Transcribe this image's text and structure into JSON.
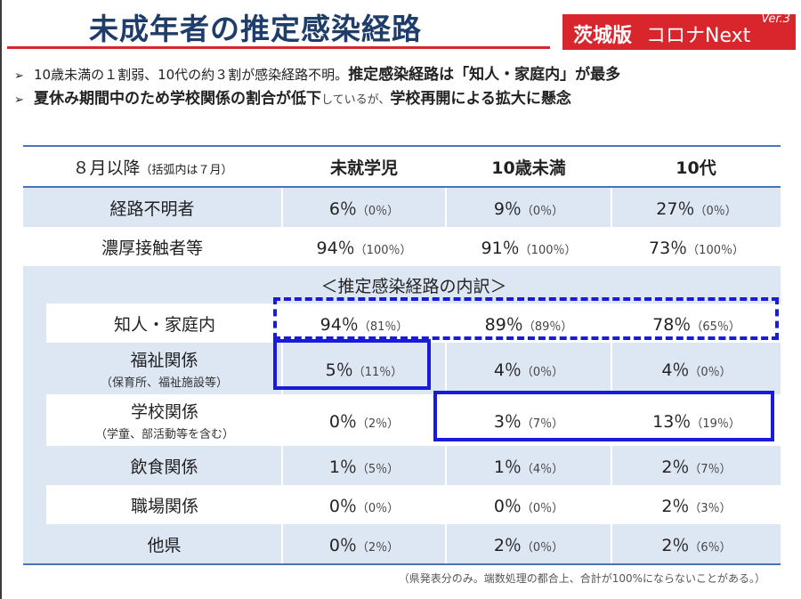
{
  "title": "未成年者の推定感染経路",
  "badge": {
    "prefix": "茨城版",
    "brand": "コロナNext",
    "version": "Ver.3"
  },
  "bullets": {
    "b1_mark": "➢",
    "b1_normal": "10歳未満の１割弱、10代の約３割が感染経路不明。",
    "b1_strong": "推定感染経路は「知人・家庭内」が最多",
    "b2_mark": "➢",
    "b2_strong1": "夏休み期間中のため学校関係の割合が低下",
    "b2_soft": "しているが、",
    "b2_strong2": "学校再開による拡大に懸念"
  },
  "table": {
    "header": {
      "label": "８月以降",
      "label_sub": "（括弧内は７月）",
      "col1": "未就学児",
      "col2": "10歳未満",
      "col3": "10代"
    },
    "section_title": "＜推定感染経路の内訳＞",
    "rows": [
      {
        "label": "経路不明者",
        "sub": "",
        "c1": "6％",
        "c1p": "（0％）",
        "c2": "9％",
        "c2p": "（0％）",
        "c3": "27％",
        "c3p": "（0％）"
      },
      {
        "label": "濃厚接触者等",
        "sub": "",
        "c1": "94％",
        "c1p": "（100％）",
        "c2": "91％",
        "c2p": "（100％）",
        "c3": "73％",
        "c3p": "（100％）"
      },
      {
        "label": "知人・家庭内",
        "sub": "",
        "c1": "94％",
        "c1p": "（81％）",
        "c2": "89％",
        "c2p": "（89％）",
        "c3": "78％",
        "c3p": "（65％）"
      },
      {
        "label": "福祉関係",
        "sub": "（保育所、福祉施設等）",
        "c1": "5％",
        "c1p": "（11％）",
        "c2": "4％",
        "c2p": "（0％）",
        "c3": "4％",
        "c3p": "（0％）"
      },
      {
        "label": "学校関係",
        "sub": "（学童、部活動等を含む）",
        "c1": "0％",
        "c1p": "（2％）",
        "c2": "3％",
        "c2p": "（7％）",
        "c3": "13％",
        "c3p": "（19％）"
      },
      {
        "label": "飲食関係",
        "sub": "",
        "c1": "1％",
        "c1p": "（5％）",
        "c2": "1％",
        "c2p": "（4％）",
        "c3": "2％",
        "c3p": "（7％）"
      },
      {
        "label": "職場関係",
        "sub": "",
        "c1": "0％",
        "c1p": "（0％）",
        "c2": "0％",
        "c2p": "（0％）",
        "c3": "2％",
        "c3p": "（3％）"
      },
      {
        "label": "他県",
        "sub": "",
        "c1": "0％",
        "c1p": "（2％）",
        "c2": "2％",
        "c2p": "（0％）",
        "c3": "2％",
        "c3p": "（6％）"
      }
    ]
  },
  "footnote": "（県発表分のみ。端数処理の都合上、合計が100%にならないことがある。）",
  "colors": {
    "accent_red": "#d9262c",
    "title_navy": "#1f3d6b",
    "band_blue": "#dde6f3",
    "highlight_blue": "#1a1adb"
  }
}
